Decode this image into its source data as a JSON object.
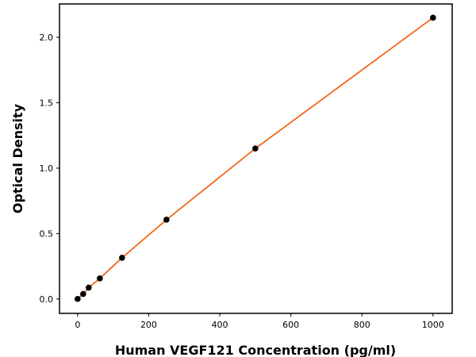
{
  "chart_data": {
    "type": "line",
    "title": "",
    "xlabel": "Human VEGF121 Concentration (pg/ml)",
    "ylabel": "Optical Density",
    "xlim": [
      -51,
      1054
    ],
    "ylim": [
      -0.11,
      2.255
    ],
    "xticks": [
      0,
      200,
      400,
      600,
      800,
      1000
    ],
    "xtick_labels": [
      "0",
      "200",
      "400",
      "600",
      "800",
      "1000"
    ],
    "yticks": [
      0.0,
      0.5,
      1.0,
      1.5,
      2.0
    ],
    "ytick_labels": [
      "0.0",
      "0.5",
      "1.0",
      "1.5",
      "2.0"
    ],
    "grid": false,
    "series": [
      {
        "x": [
          0,
          15.6,
          31.25,
          62.5,
          125,
          250,
          500,
          1000
        ],
        "y": [
          0.0,
          0.038,
          0.087,
          0.157,
          0.315,
          0.606,
          1.15,
          2.15
        ],
        "marker_color": "#000000",
        "line_color": "#f26a1b"
      }
    ]
  }
}
